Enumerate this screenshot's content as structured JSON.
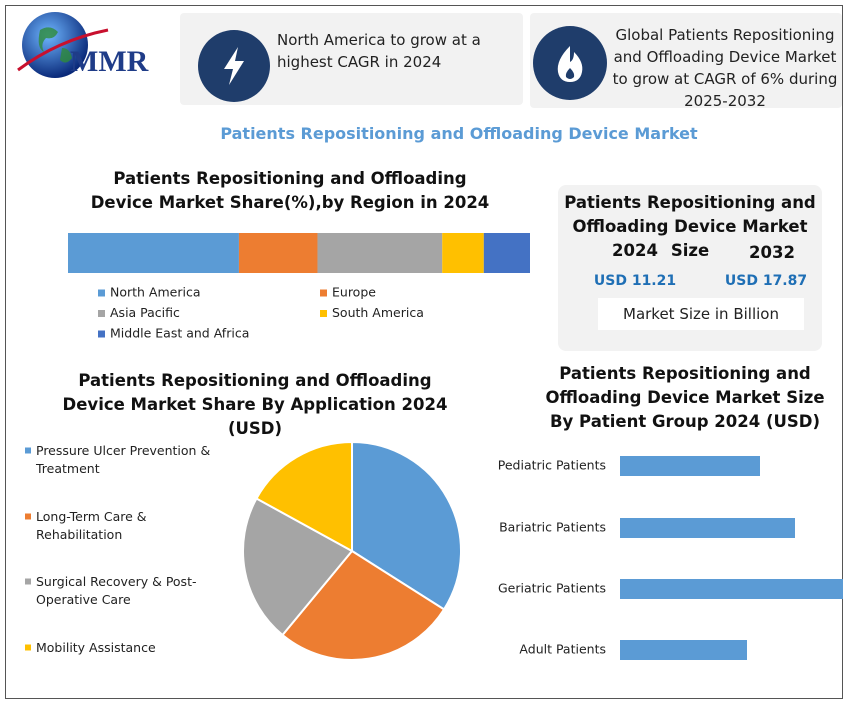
{
  "logo": "MMR",
  "cards": [
    "North America to grow at a highest CAGR in 2024",
    "Global Patients Repositioning and Offloading Device Market to grow at CAGR of 6% during 2025-2032"
  ],
  "title": "Patients Repositioning and Offloading Device Market",
  "market_size": {
    "title": "Patients Repositioning and Offloading Device Market Size",
    "years": [
      "2024",
      "2032"
    ],
    "values": [
      "USD 11.21",
      "USD 17.87"
    ],
    "note": "Market Size in Billion"
  },
  "chart_data": [
    {
      "type": "stacked-bar",
      "title": "Patients Repositioning and Offloading Device Market Share(%),by Region in 2024",
      "series": [
        {
          "name": "North America",
          "color": "#5b9bd5",
          "values": [
            37
          ]
        },
        {
          "name": "Europe",
          "color": "#ed7d31",
          "values": [
            17
          ]
        },
        {
          "name": "Asia Pacific",
          "color": "#a5a5a5",
          "values": [
            27
          ]
        },
        {
          "name": "South America",
          "color": "#ffc000",
          "values": [
            9
          ]
        },
        {
          "name": "Middle East and Africa",
          "color": "#4472c4",
          "values": [
            10
          ]
        }
      ]
    },
    {
      "type": "pie",
      "title": "Patients Repositioning and Offloading Device Market Share By Application 2024  (USD)",
      "categories": [
        "Pressure Ulcer Prevention & Treatment",
        "Long-Term Care & Rehabilitation",
        "Surgical Recovery & Post-Operative Care",
        "Mobility Assistance"
      ],
      "values": [
        34,
        27,
        22,
        17
      ],
      "colors": [
        "#5b9bd5",
        "#ed7d31",
        "#a5a5a5",
        "#ffc000"
      ]
    },
    {
      "type": "hbar",
      "title": "Patients Repositioning and Offloading Device Market Size By Patient Group 2024  (USD)",
      "categories": [
        "Pediatric Patients",
        "Bariatric Patients",
        "Geriatric Patients",
        "Adult Patients"
      ],
      "values": [
        140,
        175,
        223,
        127
      ],
      "color": "#5b9bd5"
    }
  ]
}
